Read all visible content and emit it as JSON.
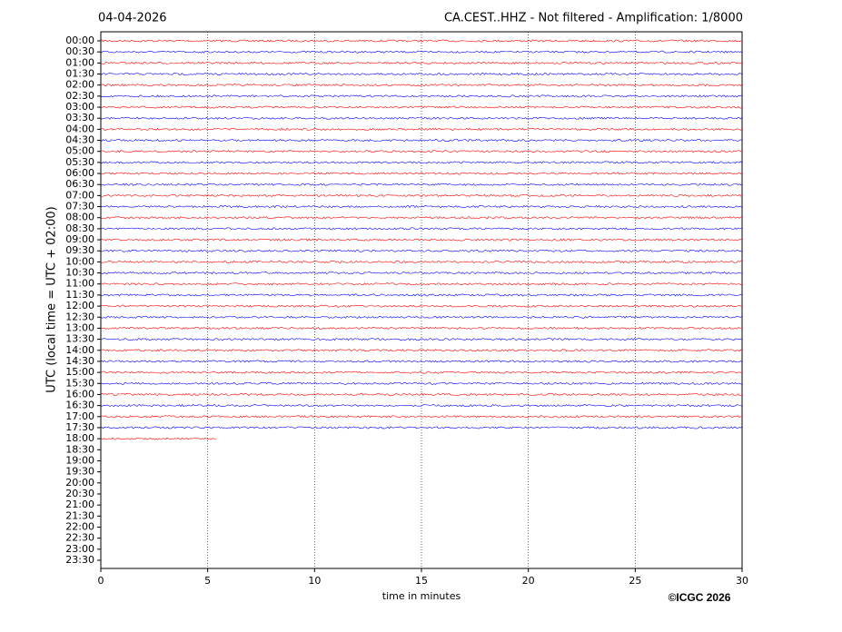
{
  "chart_data": {
    "type": "helicorder",
    "title": "04-04-2026",
    "subtitle": "CA.CEST..HHZ - Not filtered - Amplification: 1/8000",
    "y_label": "UTC (local time = UTC + 02:00)",
    "x_label": "time in minutes",
    "credit": "©ICGC 2026",
    "categories": [
      "00:00",
      "00:30",
      "01:00",
      "01:30",
      "02:00",
      "02:30",
      "03:00",
      "03:30",
      "04:00",
      "04:30",
      "05:00",
      "05:30",
      "06:00",
      "06:30",
      "07:00",
      "07:30",
      "08:00",
      "08:30",
      "09:00",
      "09:30",
      "10:00",
      "10:30",
      "11:00",
      "11:30",
      "12:00",
      "12:30",
      "13:00",
      "13:30",
      "14:00",
      "14:30",
      "15:00",
      "15:30",
      "16:00",
      "16:30",
      "17:00",
      "17:30",
      "18:00",
      "18:30",
      "19:00",
      "19:30",
      "20:00",
      "20:30",
      "21:00",
      "21:30",
      "22:00",
      "22:30",
      "23:00",
      "23:30"
    ],
    "values": [
      30,
      30,
      30,
      30,
      30,
      30,
      30,
      30,
      30,
      30,
      30,
      30,
      30,
      30,
      30,
      30,
      30,
      30,
      30,
      30,
      30,
      30,
      30,
      30,
      30,
      30,
      30,
      30,
      30,
      30,
      30,
      30,
      30,
      30,
      30,
      30,
      5.4,
      null,
      null,
      null,
      null,
      null,
      null,
      null,
      null,
      null,
      null,
      null
    ],
    "colors": [
      "#ff0000",
      "#0000ff"
    ],
    "xlim": [
      0,
      30
    ],
    "xticks": [
      0,
      5,
      10,
      15,
      20,
      25,
      30
    ],
    "grid": true
  }
}
